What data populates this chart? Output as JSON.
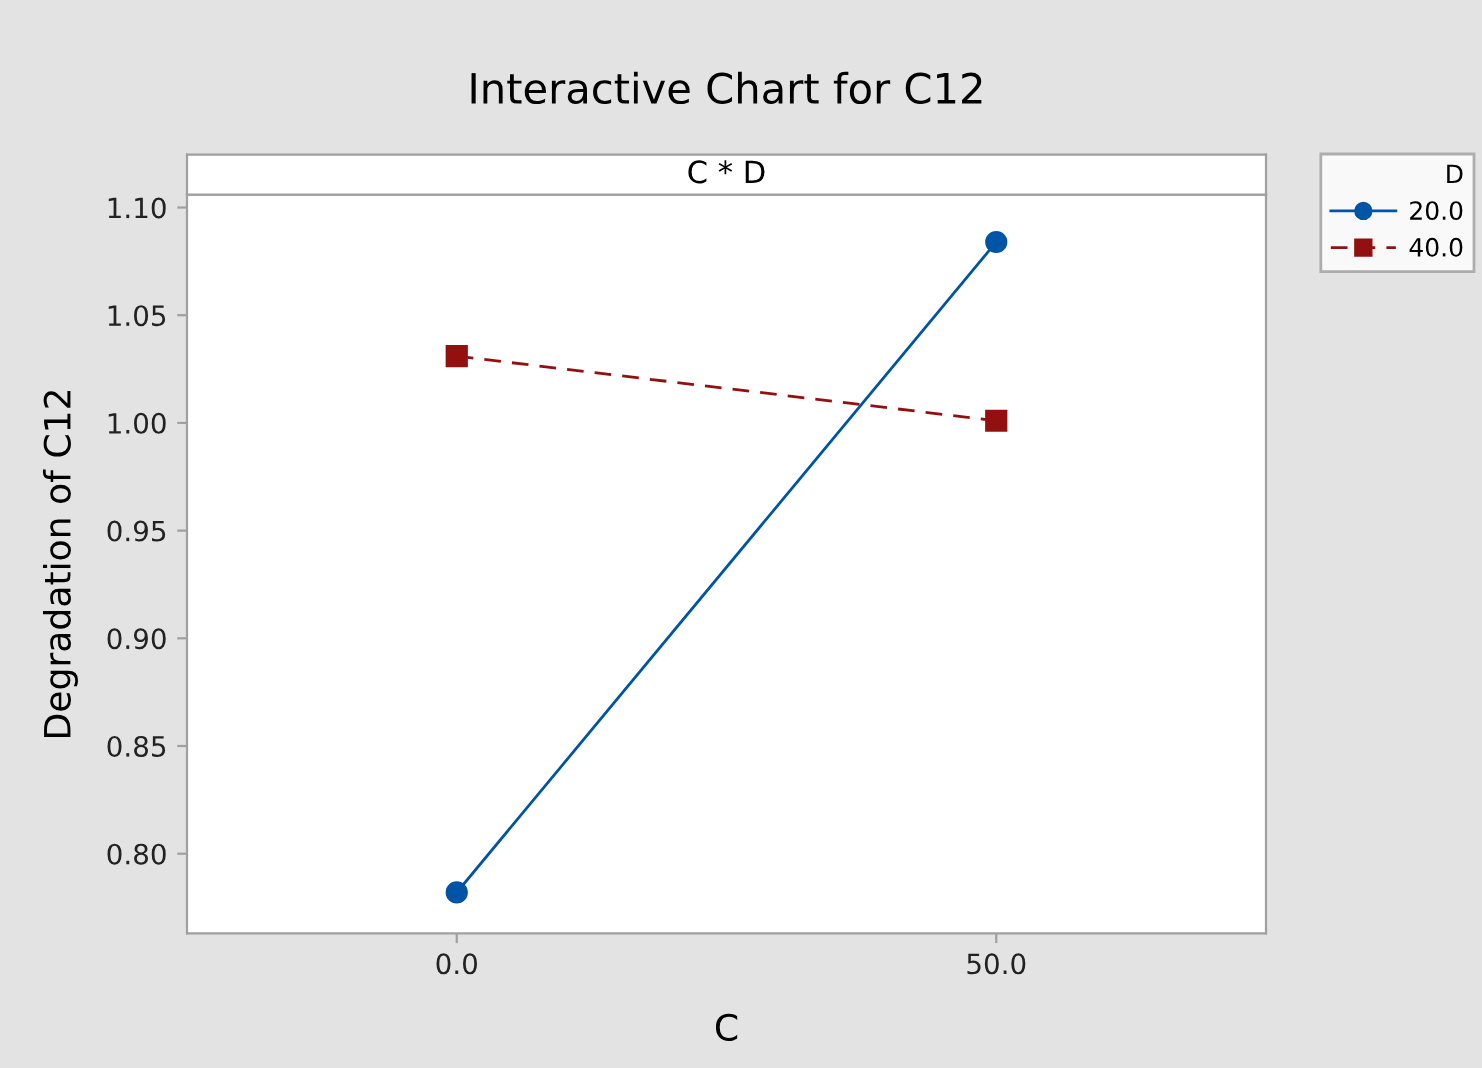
{
  "chart_data": {
    "type": "line",
    "title": "Interactive Chart for C12",
    "subtitle": "C * D",
    "xlabel": "C",
    "ylabel": "Degradation of C12",
    "legend_title": "D",
    "x": [
      0,
      50
    ],
    "xlim": [
      -25,
      75
    ],
    "xticks": [
      {
        "value": 0,
        "label": "0.0"
      },
      {
        "value": 50,
        "label": "50.0"
      }
    ],
    "ylim": [
      0.763,
      1.106
    ],
    "yticks": [
      {
        "value": 0.8,
        "label": "0.80"
      },
      {
        "value": 0.85,
        "label": "0.85"
      },
      {
        "value": 0.9,
        "label": "0.90"
      },
      {
        "value": 0.95,
        "label": "0.95"
      },
      {
        "value": 1.0,
        "label": "1.00"
      },
      {
        "value": 1.05,
        "label": "1.05"
      },
      {
        "value": 1.1,
        "label": "1.10"
      }
    ],
    "series": [
      {
        "name": "20.0",
        "color": "#0054a6",
        "values": [
          0.782,
          1.084
        ],
        "marker": "circle",
        "line_style": "solid"
      },
      {
        "name": "40.0",
        "color": "#941010",
        "values": [
          1.031,
          1.001
        ],
        "marker": "square",
        "line_style": "dashed"
      }
    ],
    "grid": false,
    "legend": "top right"
  }
}
